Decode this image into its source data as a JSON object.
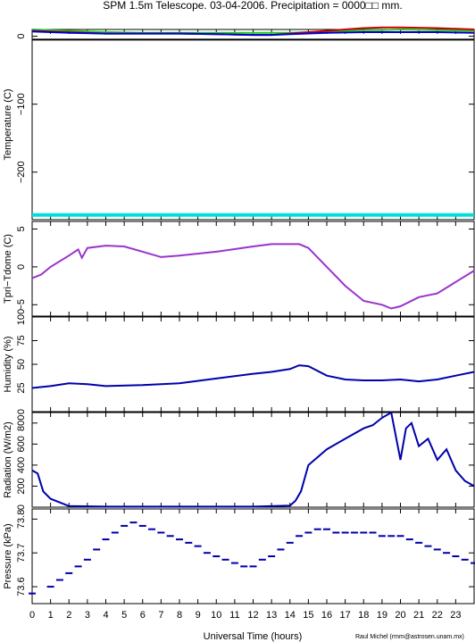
{
  "title": "SPM 1.5m Telescope. 03-04-2006. Precipitation = 0000□□ mm.",
  "xlabel": "Universal Time (hours)",
  "credit": "Raul Michel (rmm@astrosen.unam.mx)",
  "chart_data": [
    {
      "type": "line",
      "ylabel": "Temperature (C)",
      "ylim": [
        -270,
        10
      ],
      "yticks": [
        0,
        -100,
        -200
      ],
      "yticklabels": [
        "0",
        "−100",
        "−200"
      ],
      "x": [
        0,
        2,
        4,
        6,
        8,
        10,
        12,
        13,
        14,
        16,
        18,
        19,
        20,
        22,
        24
      ],
      "series": [
        {
          "color": "#22cc22",
          "values": [
            10,
            8,
            6,
            5,
            5,
            5,
            5,
            5,
            5,
            7,
            9,
            9,
            10,
            9,
            8
          ]
        },
        {
          "color": "#cc0000",
          "values": [
            8,
            6,
            4,
            4,
            4,
            3,
            2,
            2,
            4,
            8,
            12,
            13,
            13,
            12,
            10
          ]
        },
        {
          "color": "#0000cc",
          "values": [
            7,
            5,
            4,
            4,
            4,
            3,
            2,
            2,
            3,
            5,
            6,
            6,
            6,
            6,
            5
          ]
        },
        {
          "color": "#000000",
          "values": [
            -5,
            -5,
            -5,
            -5,
            -5,
            -5,
            -5,
            -5,
            -5,
            -5,
            -5,
            -5,
            -5,
            -5,
            -5
          ]
        },
        {
          "color": "#00dddd",
          "values": [
            -263,
            -263,
            -263,
            -263,
            -263,
            -263,
            -263,
            -263,
            -263,
            -263,
            -263,
            -263,
            -263,
            -263,
            -263
          ]
        }
      ]
    },
    {
      "type": "line",
      "ylabel": "Tpri−Tdome (C)",
      "ylim": [
        -6.5,
        6
      ],
      "yticks": [
        5,
        0,
        -5
      ],
      "yticklabels": [
        "5",
        "0",
        "−5"
      ],
      "x": [
        0,
        0.5,
        1,
        2,
        2.5,
        2.7,
        3,
        4,
        5,
        6,
        7,
        8,
        10,
        12,
        13,
        14,
        14.5,
        15,
        16,
        17,
        18,
        19,
        19.5,
        20,
        21,
        22,
        23,
        24
      ],
      "series": [
        {
          "color": "#9933cc",
          "values": [
            -1.5,
            -1,
            0,
            1.5,
            2.3,
            1.2,
            2.5,
            2.8,
            2.7,
            2,
            1.3,
            1.5,
            2,
            2.7,
            3,
            3,
            3,
            2.5,
            0,
            -2.5,
            -4.5,
            -5,
            -5.5,
            -5.2,
            -4,
            -3.5,
            -2,
            -0.5
          ]
        }
      ]
    },
    {
      "type": "line",
      "ylabel": "Humidity (%)",
      "ylim": [
        0,
        100
      ],
      "yticks": [
        0,
        25,
        50,
        75,
        100
      ],
      "yticklabels": [
        "0",
        "25",
        "50",
        "75",
        "100"
      ],
      "x": [
        0,
        1,
        2,
        3,
        4,
        6,
        8,
        10,
        12,
        13,
        14,
        14.5,
        15,
        16,
        17,
        18,
        19,
        20,
        21,
        22,
        23,
        24
      ],
      "series": [
        {
          "color": "#0000aa",
          "values": [
            25,
            27,
            30,
            29,
            27,
            28,
            30,
            35,
            40,
            42,
            45,
            49,
            48,
            38,
            34,
            33,
            33,
            34,
            32,
            34,
            38,
            42
          ]
        }
      ]
    },
    {
      "type": "line",
      "ylabel": "Radiation (W/m2)",
      "ylim": [
        0,
        900
      ],
      "yticks": [
        0,
        200,
        400,
        600,
        800
      ],
      "yticklabels": [
        "0",
        "200",
        "400",
        "600",
        "800"
      ],
      "x": [
        0,
        0.3,
        0.6,
        1,
        2,
        4,
        6,
        8,
        10,
        12,
        14,
        14.3,
        14.6,
        15,
        16,
        17,
        18,
        18.5,
        19,
        19.5,
        20,
        20.3,
        20.6,
        21,
        21.5,
        22,
        22.5,
        23,
        23.5,
        24
      ],
      "series": [
        {
          "color": "#0000aa",
          "values": [
            350,
            320,
            150,
            80,
            10,
            5,
            5,
            5,
            5,
            5,
            15,
            60,
            150,
            400,
            550,
            650,
            750,
            780,
            850,
            900,
            450,
            750,
            800,
            580,
            650,
            450,
            550,
            350,
            250,
            200
          ]
        }
      ]
    },
    {
      "type": "scatter",
      "ylabel": "Pressure (kPa)",
      "ylim": [
        73.55,
        73.83
      ],
      "yticks": [
        73.6,
        73.7,
        73.8
      ],
      "yticklabels": [
        "73.6",
        "73.7",
        "73.8"
      ],
      "x": [
        0,
        1,
        1.5,
        2,
        2.5,
        3,
        3.5,
        4,
        4.5,
        5,
        5.5,
        6,
        6.5,
        7,
        7.5,
        8,
        8.5,
        9,
        9.5,
        10,
        10.5,
        11,
        11.5,
        12,
        12.5,
        13,
        13.5,
        14,
        14.5,
        15,
        15.5,
        16,
        16.5,
        17,
        17.5,
        18,
        18.5,
        19,
        19.5,
        20,
        20.5,
        21,
        21.5,
        22,
        22.5,
        23,
        23.5,
        24
      ],
      "series": [
        {
          "color": "#0000aa",
          "values": [
            73.58,
            73.6,
            73.62,
            73.64,
            73.66,
            73.68,
            73.71,
            73.74,
            73.76,
            73.78,
            73.79,
            73.78,
            73.77,
            73.76,
            73.75,
            73.74,
            73.73,
            73.72,
            73.7,
            73.69,
            73.68,
            73.67,
            73.66,
            73.66,
            73.68,
            73.69,
            73.71,
            73.73,
            73.75,
            73.76,
            73.77,
            73.77,
            73.76,
            73.76,
            73.76,
            73.76,
            73.76,
            73.75,
            73.75,
            73.75,
            73.74,
            73.73,
            73.72,
            73.71,
            73.7,
            73.69,
            73.68,
            73.67
          ]
        }
      ]
    }
  ],
  "xticks": [
    0,
    1,
    2,
    3,
    4,
    5,
    6,
    7,
    8,
    9,
    10,
    11,
    12,
    13,
    14,
    15,
    16,
    17,
    18,
    19,
    20,
    21,
    22,
    23
  ],
  "xlim": [
    0,
    24
  ]
}
